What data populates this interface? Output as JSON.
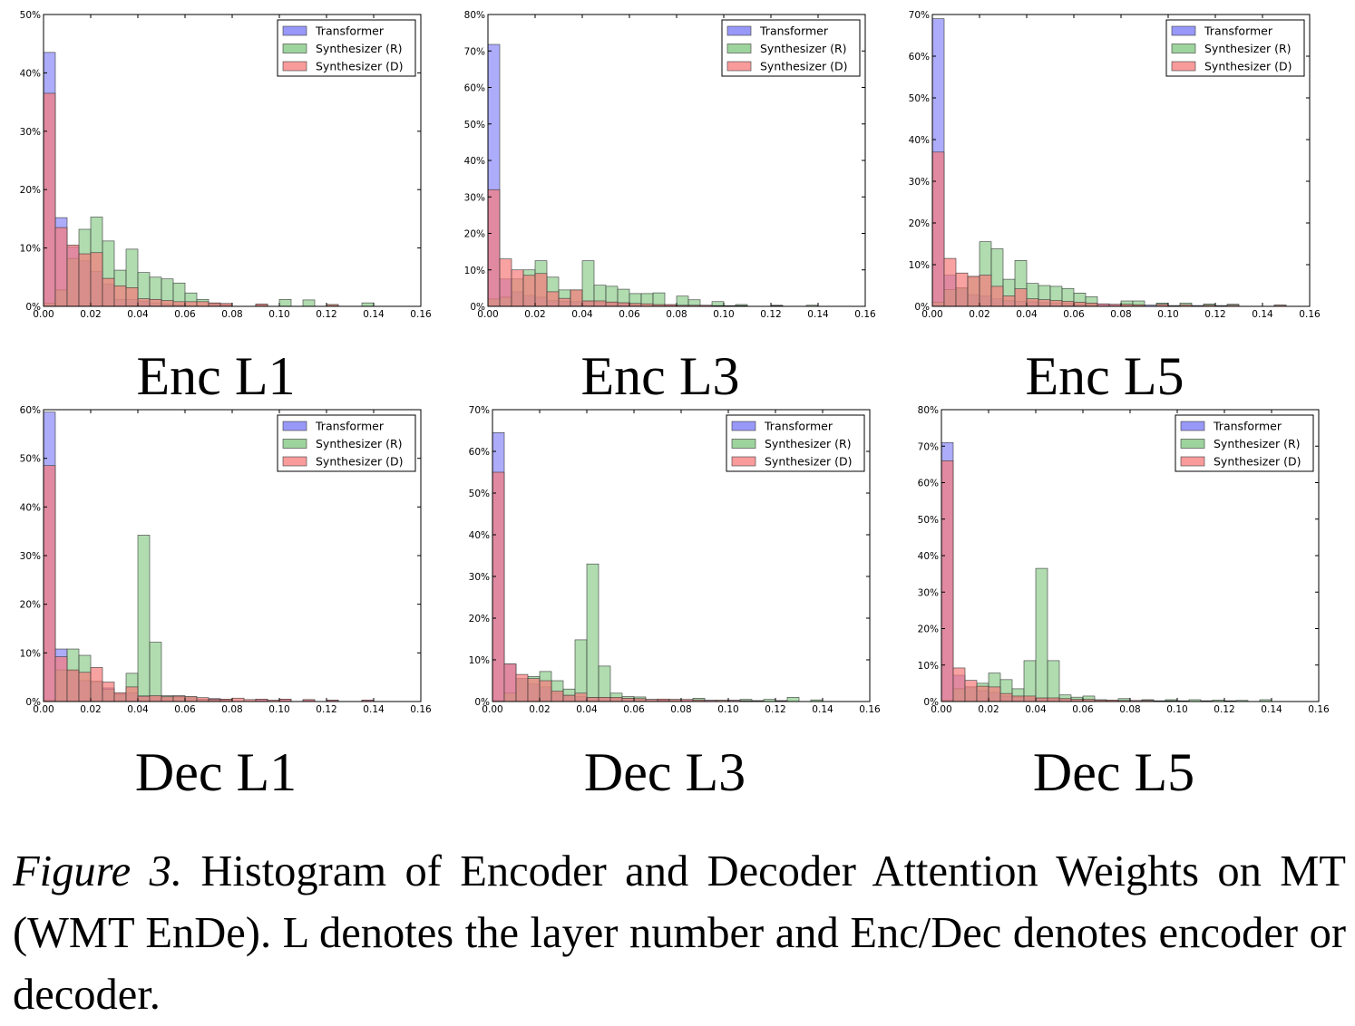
{
  "colors": {
    "transformer": "#7575f7",
    "synthesizer_r": "#7cc47c",
    "synthesizer_d": "#f77a7a"
  },
  "chart_data": [
    {
      "type": "bar",
      "title": "Enc L1",
      "x_ticks": [
        "0.00",
        "0.02",
        "0.04",
        "0.06",
        "0.08",
        "0.10",
        "0.12",
        "0.14",
        "0.16"
      ],
      "xlim": [
        0,
        0.16
      ],
      "ylim": [
        0,
        50
      ],
      "y_ticks": [
        "0%",
        "10%",
        "20%",
        "30%",
        "40%",
        "50%"
      ],
      "legend": [
        "Transformer",
        "Synthesizer (R)",
        "Synthesizer (D)"
      ],
      "series": [
        {
          "name": "Transformer",
          "values": [
            43.5,
            15.2,
            10.2,
            7.8,
            6.0,
            3.8,
            1.2,
            1.2,
            0.9,
            0.6,
            0.4,
            0.3,
            0,
            0,
            0.4,
            0.3,
            0,
            0,
            0.3,
            0,
            0,
            0,
            0,
            0,
            0,
            0,
            0,
            0,
            0,
            0,
            0,
            0
          ]
        },
        {
          "name": "Synthesizer (R)",
          "values": [
            0.5,
            2.8,
            8.2,
            13.2,
            15.3,
            11.2,
            6.2,
            9.8,
            5.8,
            5.0,
            4.7,
            4.0,
            2.3,
            1.2,
            0.5,
            0.3,
            0,
            0,
            0.3,
            0,
            1.2,
            0,
            1.1,
            0,
            0.3,
            0,
            0,
            0.6,
            0,
            0,
            0,
            0
          ]
        },
        {
          "name": "Synthesizer (D)",
          "values": [
            36.5,
            13.5,
            10.5,
            9.0,
            9.2,
            4.8,
            3.5,
            3.2,
            1.3,
            1.2,
            1.0,
            0.8,
            0.8,
            0.8,
            0.6,
            0.5,
            0,
            0,
            0.4,
            0,
            0,
            0,
            0,
            0,
            0.3,
            0,
            0,
            0,
            0,
            0,
            0,
            0
          ]
        }
      ]
    },
    {
      "type": "bar",
      "title": "Enc L3",
      "x_ticks": [
        "0.00",
        "0.02",
        "0.04",
        "0.06",
        "0.08",
        "0.10",
        "0.12",
        "0.14",
        "0.16"
      ],
      "xlim": [
        0,
        0.16
      ],
      "ylim": [
        0,
        80
      ],
      "y_ticks": [
        "0%",
        "10%",
        "20%",
        "30%",
        "40%",
        "50%",
        "60%",
        "70%",
        "80%"
      ],
      "legend": [
        "Transformer",
        "Synthesizer (R)",
        "Synthesizer (D)"
      ],
      "series": [
        {
          "name": "Transformer",
          "values": [
            71.8,
            7.5,
            4.0,
            3.0,
            2.5,
            1.6,
            1.4,
            1.3,
            1.3,
            1.1,
            1.0,
            0.8,
            0.5,
            0,
            0.3,
            0.3,
            0,
            0,
            0.3,
            0,
            0,
            0,
            0,
            0,
            0,
            0,
            0,
            0,
            0,
            0,
            0,
            0
          ]
        },
        {
          "name": "Synthesizer (R)",
          "values": [
            2.0,
            2.5,
            7.5,
            10.0,
            12.5,
            8.0,
            4.5,
            4.5,
            12.5,
            5.8,
            5.5,
            4.7,
            3.5,
            3.5,
            3.7,
            0,
            2.8,
            1.8,
            0,
            1.3,
            0,
            0.5,
            0,
            0,
            0.3,
            0,
            0,
            0.3,
            0,
            0,
            0,
            0
          ]
        },
        {
          "name": "Synthesizer (D)",
          "values": [
            32.0,
            13.0,
            10.0,
            8.5,
            9.0,
            4.0,
            2.2,
            4.5,
            1.5,
            1.5,
            1.2,
            1.0,
            0.8,
            0.7,
            0.5,
            0.5,
            0.3,
            0.3,
            0.3,
            0.2,
            0.2,
            0.2,
            0,
            0,
            0.2,
            0,
            0,
            0,
            0,
            0,
            0,
            0
          ]
        }
      ]
    },
    {
      "type": "bar",
      "title": "Enc L5",
      "x_ticks": [
        "0.00",
        "0.02",
        "0.04",
        "0.06",
        "0.08",
        "0.10",
        "0.12",
        "0.14",
        "0.16"
      ],
      "xlim": [
        0,
        0.16
      ],
      "ylim": [
        0,
        70
      ],
      "y_ticks": [
        "0%",
        "10%",
        "20%",
        "30%",
        "40%",
        "50%",
        "60%",
        "70%"
      ],
      "legend": [
        "Transformer",
        "Synthesizer (R)",
        "Synthesizer (D)"
      ],
      "series": [
        {
          "name": "Transformer",
          "values": [
            69.0,
            7.5,
            4.2,
            2.8,
            2.5,
            1.8,
            1.4,
            1.2,
            1.1,
            0.9,
            0.8,
            0.7,
            0.5,
            0.4,
            0.6,
            0.4,
            0.3,
            0.3,
            0.3,
            0.3,
            0.2,
            0,
            0.2,
            0,
            0.2,
            0,
            0,
            0,
            0,
            0,
            0,
            0
          ]
        },
        {
          "name": "Synthesizer (R)",
          "values": [
            1.0,
            4.0,
            4.5,
            7.0,
            15.5,
            13.8,
            6.5,
            11.0,
            5.5,
            5.0,
            4.8,
            4.3,
            3.2,
            2.3,
            0,
            0,
            1.3,
            1.3,
            0,
            0.8,
            0,
            0.8,
            0,
            0.6,
            0,
            0.5,
            0,
            0,
            0,
            0.3,
            0,
            0
          ]
        },
        {
          "name": "Synthesizer (D)",
          "values": [
            37.0,
            11.5,
            8.0,
            7.2,
            7.5,
            4.8,
            2.5,
            4.2,
            1.8,
            1.6,
            1.4,
            1.2,
            1.0,
            0.8,
            0.6,
            0.5,
            0.5,
            0.4,
            0,
            0.5,
            0,
            0.4,
            0,
            0.3,
            0,
            0.3,
            0,
            0,
            0,
            0.3,
            0,
            0
          ]
        }
      ]
    },
    {
      "type": "bar",
      "title": "Dec L1",
      "x_ticks": [
        "0.00",
        "0.02",
        "0.04",
        "0.06",
        "0.08",
        "0.10",
        "0.12",
        "0.14",
        "0.16"
      ],
      "xlim": [
        0,
        0.16
      ],
      "ylim": [
        0,
        60
      ],
      "y_ticks": [
        "0%",
        "10%",
        "20%",
        "30%",
        "40%",
        "50%",
        "60%"
      ],
      "legend": [
        "Transformer",
        "Synthesizer (R)",
        "Synthesizer (D)"
      ],
      "series": [
        {
          "name": "Transformer",
          "values": [
            59.5,
            10.8,
            6.2,
            4.3,
            4.0,
            2.8,
            1.5,
            1.8,
            1.2,
            1.0,
            0.9,
            0.9,
            0.8,
            0.5,
            0.6,
            0.4,
            0,
            0,
            0.4,
            0,
            0.4,
            0,
            0.3,
            0,
            0.3,
            0,
            0,
            0.3,
            0,
            0,
            0,
            0
          ]
        },
        {
          "name": "Synthesizer (R)",
          "values": [
            0.2,
            6.5,
            10.8,
            9.5,
            4.2,
            2.5,
            1.5,
            5.8,
            34.2,
            12.2,
            1.2,
            1.2,
            1.0,
            0.5,
            0.3,
            0.3,
            0,
            0,
            0,
            0,
            0,
            0,
            0,
            0,
            0,
            0,
            0,
            0,
            0,
            0,
            0,
            0
          ]
        },
        {
          "name": "Synthesizer (D)",
          "values": [
            48.5,
            9.2,
            6.5,
            6.0,
            7.0,
            4.0,
            1.8,
            3.0,
            1.1,
            1.2,
            1.0,
            1.1,
            1.0,
            0.8,
            0.5,
            0.5,
            0.7,
            0.4,
            0.5,
            0.3,
            0.5,
            0,
            0.4,
            0,
            0.3,
            0,
            0,
            0.3,
            0,
            0,
            0,
            0
          ]
        }
      ]
    },
    {
      "type": "bar",
      "title": "Dec L3",
      "x_ticks": [
        "0.00",
        "0.02",
        "0.04",
        "0.06",
        "0.08",
        "0.10",
        "0.12",
        "0.14",
        "0.16"
      ],
      "xlim": [
        0,
        0.16
      ],
      "ylim": [
        0,
        70
      ],
      "y_ticks": [
        "0%",
        "10%",
        "20%",
        "30%",
        "40%",
        "50%",
        "60%",
        "70%"
      ],
      "legend": [
        "Transformer",
        "Synthesizer (R)",
        "Synthesizer (D)"
      ],
      "series": [
        {
          "name": "Transformer",
          "values": [
            64.5,
            9.0,
            5.5,
            4.2,
            3.5,
            2.0,
            1.5,
            1.2,
            1.0,
            0.9,
            0.8,
            0.8,
            0.6,
            0.5,
            0.4,
            0.4,
            0.3,
            0.3,
            0.3,
            0,
            0.3,
            0,
            0.2,
            0,
            0.2,
            0,
            0,
            0,
            0,
            0,
            0,
            0
          ]
        },
        {
          "name": "Synthesizer (R)",
          "values": [
            0.2,
            2.0,
            5.5,
            6.0,
            7.2,
            5.0,
            3.0,
            14.8,
            33.0,
            8.5,
            2.0,
            1.2,
            1.1,
            0.5,
            0.3,
            0.5,
            0,
            0.8,
            0,
            0.3,
            0,
            0.5,
            0,
            0.5,
            0,
            1.0,
            0,
            0.4,
            0,
            0,
            0,
            0
          ]
        },
        {
          "name": "Synthesizer (D)",
          "values": [
            55.0,
            9.0,
            6.5,
            5.5,
            5.0,
            2.5,
            1.5,
            2.0,
            1.0,
            1.0,
            1.0,
            0.8,
            0.7,
            0.5,
            0.6,
            0.5,
            0.5,
            0.4,
            0.3,
            0.3,
            0.3,
            0.2,
            0.2,
            0,
            0.2,
            0,
            0,
            0,
            0,
            0,
            0,
            0
          ]
        }
      ]
    },
    {
      "type": "bar",
      "title": "Dec L5",
      "x_ticks": [
        "0.00",
        "0.02",
        "0.04",
        "0.06",
        "0.08",
        "0.10",
        "0.12",
        "0.14",
        "0.16"
      ],
      "xlim": [
        0,
        0.16
      ],
      "ylim": [
        0,
        80
      ],
      "y_ticks": [
        "0%",
        "10%",
        "20%",
        "30%",
        "40%",
        "50%",
        "60%",
        "70%",
        "80%"
      ],
      "legend": [
        "Transformer",
        "Synthesizer (R)",
        "Synthesizer (D)"
      ],
      "series": [
        {
          "name": "Transformer",
          "values": [
            71.0,
            7.2,
            4.0,
            3.0,
            2.5,
            1.5,
            1.2,
            1.0,
            0.8,
            0.7,
            0.6,
            0.5,
            0.4,
            0.4,
            0.3,
            0.3,
            0.3,
            0.3,
            0.2,
            0.2,
            0.2,
            0,
            0.2,
            0,
            0.2,
            0,
            0,
            0,
            0,
            0,
            0,
            0
          ]
        },
        {
          "name": "Synthesizer (R)",
          "values": [
            0.3,
            3.5,
            4.0,
            5.0,
            7.8,
            6.0,
            3.5,
            11.2,
            36.5,
            11.2,
            1.8,
            1.2,
            1.5,
            0.5,
            0.3,
            0.8,
            0,
            0.5,
            0,
            0.5,
            0,
            0.5,
            0,
            0.4,
            0,
            0.3,
            0,
            0.5,
            0,
            0,
            0,
            0
          ]
        },
        {
          "name": "Synthesizer (D)",
          "values": [
            66.0,
            9.2,
            5.8,
            4.2,
            4.0,
            2.2,
            1.5,
            1.5,
            1.0,
            1.0,
            0.8,
            0.6,
            0.6,
            0.4,
            0.4,
            0.3,
            0.3,
            0.3,
            0.2,
            0.2,
            0.2,
            0,
            0.2,
            0,
            0.2,
            0,
            0,
            0,
            0,
            0,
            0,
            0
          ]
        }
      ]
    }
  ],
  "caption": {
    "label": "Figure 3.",
    "text": " Histogram of Encoder and Decoder Attention Weights on MT (WMT EnDe). L denotes the layer number and Enc/Dec denotes encoder or decoder."
  }
}
